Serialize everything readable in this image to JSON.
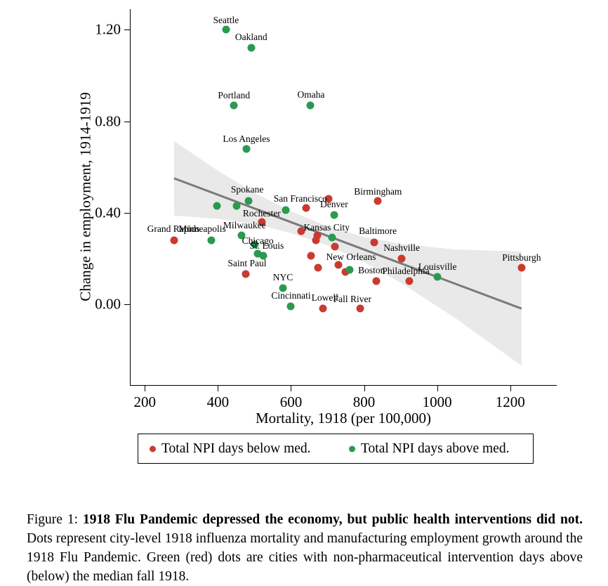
{
  "colors": {
    "below": "#c93a30",
    "above": "#2b9a51",
    "fit_line": "#7a7a7a",
    "ci_band": "#e9e9e9",
    "axis": "#000000"
  },
  "chart_data": {
    "type": "scatter",
    "xlabel": "Mortality, 1918 (per 100,000)",
    "ylabel": "Change in employment, 1914-1919",
    "x_ticks": [
      200,
      400,
      600,
      800,
      1000,
      1200
    ],
    "y_ticks": [
      {
        "v": 0.0,
        "label": "0.00"
      },
      {
        "v": 0.4,
        "label": "0.40"
      },
      {
        "v": 0.8,
        "label": "0.80"
      },
      {
        "v": 1.2,
        "label": "1.20"
      }
    ],
    "xlim": [
      160,
      1330
    ],
    "ylim": [
      -0.36,
      1.29
    ],
    "grid": false,
    "legend_position": "bottom-box",
    "legend": [
      {
        "label": "Total NPI days below med.",
        "color_key": "below"
      },
      {
        "label": "Total NPI days above med.",
        "color_key": "above"
      }
    ],
    "series": [
      {
        "name": "Total NPI days below med.",
        "color_key": "below",
        "points": [
          {
            "city": "Grand Rapids",
            "m": 280,
            "e": 0.28,
            "lox": -1,
            "loy": -16
          },
          {
            "city": "Rochester",
            "m": 520,
            "e": 0.36,
            "lox": 0,
            "loy": -12
          },
          {
            "city": "San Francisco",
            "m": 641,
            "e": 0.42,
            "lox": -8,
            "loy": -13
          },
          {
            "city": "",
            "m": 703,
            "e": 0.46
          },
          {
            "city": "Birmingham",
            "m": 838,
            "e": 0.45,
            "lox": 0,
            "loy": -13
          },
          {
            "city": "",
            "m": 628,
            "e": 0.32
          },
          {
            "city": "",
            "m": 672,
            "e": 0.3
          },
          {
            "city": "",
            "m": 668,
            "e": 0.28
          },
          {
            "city": "",
            "m": 720,
            "e": 0.25
          },
          {
            "city": "Baltimore",
            "m": 828,
            "e": 0.27,
            "lox": 5,
            "loy": -16
          },
          {
            "city": "Nashville",
            "m": 903,
            "e": 0.2,
            "lox": 0,
            "loy": -15
          },
          {
            "city": "",
            "m": 655,
            "e": 0.21
          },
          {
            "city": "",
            "m": 674,
            "e": 0.16
          },
          {
            "city": "",
            "m": 730,
            "e": 0.17
          },
          {
            "city": "New Orleans",
            "m": 749,
            "e": 0.14,
            "lox": 8,
            "loy": -21
          },
          {
            "city": "Boston",
            "m": 834,
            "e": 0.1,
            "lox": -7,
            "loy": -15
          },
          {
            "city": "Philadelphia",
            "m": 924,
            "e": 0.1,
            "lox": -5,
            "loy": -14
          },
          {
            "city": "Pittsburgh",
            "m": 1231,
            "e": 0.16,
            "lox": 0,
            "loy": -14
          },
          {
            "city": "Saint Paul",
            "m": 476,
            "e": 0.13,
            "lox": 2,
            "loy": -15
          },
          {
            "city": "Lowell",
            "m": 687,
            "e": -0.02,
            "lox": 3,
            "loy": -15
          },
          {
            "city": "Fall River",
            "m": 789,
            "e": -0.02,
            "lox": -11,
            "loy": -13
          }
        ]
      },
      {
        "name": "Total NPI days above med.",
        "color_key": "above",
        "points": [
          {
            "city": "Seattle",
            "m": 422,
            "e": 1.2,
            "lox": 0,
            "loy": -13
          },
          {
            "city": "Oakland",
            "m": 491,
            "e": 1.12,
            "lox": 0,
            "loy": -15
          },
          {
            "city": "Portland",
            "m": 444,
            "e": 0.87,
            "lox": 0,
            "loy": -14
          },
          {
            "city": "Omaha",
            "m": 653,
            "e": 0.87,
            "lox": 1,
            "loy": -15
          },
          {
            "city": "Los Angeles",
            "m": 478,
            "e": 0.68,
            "lox": 0,
            "loy": -14
          },
          {
            "city": "",
            "m": 397,
            "e": 0.43
          },
          {
            "city": "",
            "m": 451,
            "e": 0.43
          },
          {
            "city": "Spokane",
            "m": 484,
            "e": 0.45,
            "lox": -2,
            "loy": -16
          },
          {
            "city": "",
            "m": 586,
            "e": 0.41
          },
          {
            "city": "Denver",
            "m": 718,
            "e": 0.39,
            "lox": 0,
            "loy": -15
          },
          {
            "city": "Minneapolis",
            "m": 382,
            "e": 0.28,
            "lox": -13,
            "loy": -16
          },
          {
            "city": "Milwaukee",
            "m": 465,
            "e": 0.3,
            "lox": 4,
            "loy": -14
          },
          {
            "city": "",
            "m": 501,
            "e": 0.26
          },
          {
            "city": "Chicago",
            "m": 509,
            "e": 0.22,
            "lox": 0,
            "loy": -18
          },
          {
            "city": "St. Louis",
            "m": 524,
            "e": 0.21,
            "lox": 5,
            "loy": -14
          },
          {
            "city": "Kansas City",
            "m": 713,
            "e": 0.29,
            "lox": -8,
            "loy": -14
          },
          {
            "city": "",
            "m": 761,
            "e": 0.15
          },
          {
            "city": "Louisville",
            "m": 1001,
            "e": 0.12,
            "lox": 0,
            "loy": -14
          },
          {
            "city": "NYC",
            "m": 578,
            "e": 0.07,
            "lox": 0,
            "loy": -15
          },
          {
            "city": "Cincinnati",
            "m": 600,
            "e": -0.01,
            "lox": 0,
            "loy": -15
          }
        ]
      }
    ],
    "fit_line": {
      "m1": 280,
      "e1": 0.55,
      "m2": 1231,
      "e2": -0.02
    },
    "ci_band": {
      "m": [
        280,
        400,
        500,
        600,
        700,
        800,
        900,
        1050,
        1231
      ],
      "half_width": [
        0.163,
        0.105,
        0.068,
        0.048,
        0.042,
        0.055,
        0.085,
        0.15,
        0.25
      ]
    }
  },
  "caption": {
    "prefix": "Figure 1: ",
    "bold": "1918 Flu Pandemic depressed the economy, but public health interventions did not.",
    "rest": " Dots represent city-level 1918 influenza mortality and manufacturing employment growth around the 1918 Flu Pandemic. Green (red) dots are cities with non-pharmaceutical intervention days above (below) the median fall 1918."
  }
}
